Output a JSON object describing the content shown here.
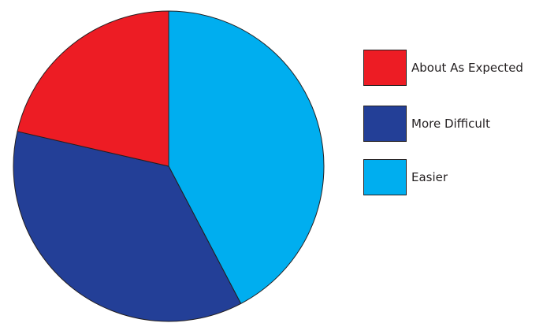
{
  "chart_data": {
    "type": "pie",
    "title": "",
    "start_angle_deg": 0,
    "direction": "clockwise",
    "slices": [
      {
        "label": "Easier",
        "value": 42.3,
        "color": "#00aeef"
      },
      {
        "label": "More Difficult",
        "value": 36.3,
        "color": "#233f97"
      },
      {
        "label": "About As Expected",
        "value": 21.4,
        "color": "#ed1c24"
      }
    ],
    "legend": {
      "placement": "right",
      "entries": [
        {
          "label": "About As Expected",
          "color": "#ed1c24"
        },
        {
          "label": "More Difficult",
          "color": "#233f97"
        },
        {
          "label": "Easier",
          "color": "#00aeef"
        }
      ]
    }
  }
}
